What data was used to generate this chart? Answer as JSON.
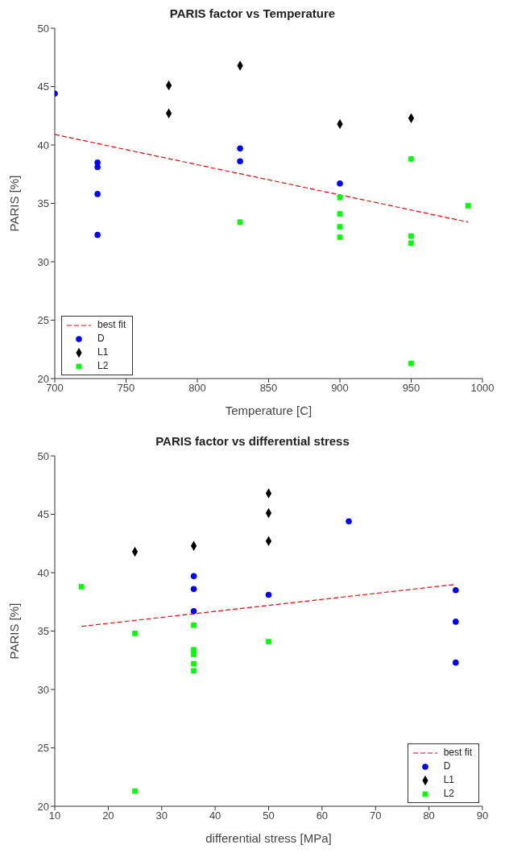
{
  "chart_data": [
    {
      "type": "scatter",
      "title": "PARIS factor vs Temperature",
      "xlabel": "Temperature [C]",
      "ylabel": "PARIS [%]",
      "xlim": [
        700,
        1000
      ],
      "xticks": [
        700,
        750,
        800,
        850,
        900,
        950,
        1000
      ],
      "ylim": [
        20,
        50
      ],
      "yticks": [
        20,
        25,
        30,
        35,
        40,
        45,
        50
      ],
      "grid": false,
      "legend": "bottom left",
      "series": [
        {
          "name": "best fit",
          "type": "line",
          "color": "#ff0000",
          "line_style": "dashed",
          "marker": "none",
          "x": [
            700,
            990
          ],
          "values": [
            40.9,
            33.4
          ]
        },
        {
          "name": "D",
          "color": "#0000ff",
          "marker": "circle",
          "x": [
            700,
            730,
            730,
            730,
            730,
            830,
            830,
            900
          ],
          "values": [
            44.4,
            38.5,
            38.1,
            35.8,
            32.3,
            39.7,
            38.6,
            36.7
          ]
        },
        {
          "name": "L1",
          "color": "#000000",
          "marker": "diamond",
          "x": [
            780,
            780,
            830,
            900,
            950
          ],
          "values": [
            45.1,
            42.7,
            46.8,
            41.8,
            42.3
          ]
        },
        {
          "name": "L2",
          "color": "#00ff00",
          "marker": "square",
          "x": [
            830,
            900,
            900,
            900,
            900,
            950,
            950,
            950,
            950,
            990
          ],
          "values": [
            33.4,
            35.5,
            34.1,
            33.0,
            32.1,
            38.8,
            32.2,
            31.6,
            21.3,
            34.8
          ]
        }
      ]
    },
    {
      "type": "scatter",
      "title": "PARIS factor vs differential stress",
      "xlabel": "differential stress [MPa]",
      "ylabel": "PARIS [%]",
      "xlim": [
        10,
        90
      ],
      "xticks": [
        10,
        20,
        30,
        40,
        50,
        60,
        70,
        80,
        90
      ],
      "ylim": [
        20,
        50
      ],
      "yticks": [
        20,
        25,
        30,
        35,
        40,
        45,
        50
      ],
      "grid": false,
      "legend": "bottom right",
      "series": [
        {
          "name": "best fit",
          "type": "line",
          "color": "#ff0000",
          "line_style": "dashed",
          "marker": "none",
          "x": [
            15,
            85
          ],
          "values": [
            35.4,
            39.0
          ]
        },
        {
          "name": "D",
          "color": "#0000ff",
          "marker": "circle",
          "x": [
            65,
            85,
            85,
            85,
            50,
            36,
            36,
            36
          ],
          "values": [
            44.4,
            38.5,
            35.8,
            32.3,
            38.1,
            39.7,
            38.6,
            36.7
          ]
        },
        {
          "name": "L1",
          "color": "#000000",
          "marker": "diamond",
          "x": [
            25,
            36,
            50,
            50,
            50
          ],
          "values": [
            41.8,
            42.3,
            46.8,
            45.1,
            42.7
          ]
        },
        {
          "name": "L2",
          "color": "#00ff00",
          "marker": "square",
          "x": [
            15,
            25,
            25,
            36,
            36,
            36,
            36,
            36,
            50
          ],
          "values": [
            38.8,
            34.8,
            21.3,
            35.5,
            33.4,
            33.0,
            32.2,
            31.6,
            34.1
          ]
        }
      ]
    }
  ]
}
